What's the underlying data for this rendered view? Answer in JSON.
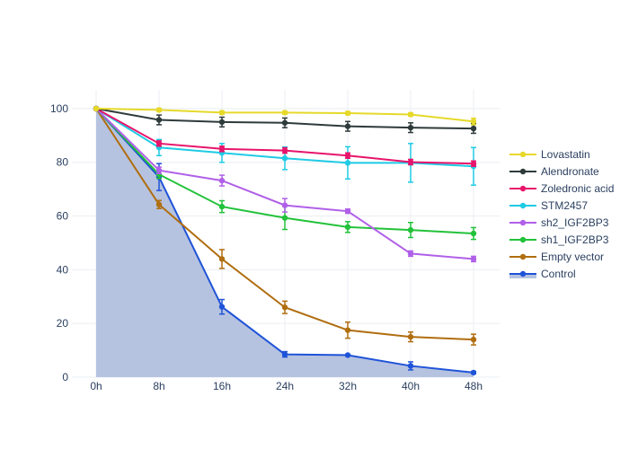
{
  "chart_data": {
    "type": "line",
    "title": "",
    "xlabel": "",
    "ylabel": "",
    "categories": [
      "0h",
      "8h",
      "16h",
      "24h",
      "32h",
      "40h",
      "48h"
    ],
    "ylim": [
      0,
      107
    ],
    "yticks": [
      0,
      20,
      40,
      60,
      80,
      100
    ],
    "grid": true,
    "legend_position": "right",
    "series": [
      {
        "name": "Lovastatin",
        "color": "#e6d92a",
        "values": [
          100,
          99.5,
          98.5,
          98.5,
          98.3,
          97.8,
          95.2
        ],
        "errors": [
          0,
          0.6,
          0.6,
          0.6,
          0.6,
          0.6,
          1.2
        ]
      },
      {
        "name": "Alendronate",
        "color": "#2f3b3b",
        "values": [
          100,
          95.8,
          95.0,
          94.7,
          93.4,
          92.9,
          92.6
        ],
        "errors": [
          0,
          1.8,
          1.8,
          1.8,
          1.8,
          1.8,
          1.8
        ]
      },
      {
        "name": "Zoledronic acid",
        "color": "#e8146b",
        "values": [
          100,
          87.0,
          85.0,
          84.4,
          82.5,
          80.1,
          79.5
        ],
        "errors": [
          0,
          1.0,
          1.0,
          1.0,
          1.0,
          1.0,
          1.0
        ]
      },
      {
        "name": "STM2457",
        "color": "#1fcbe5",
        "values": [
          100,
          85.5,
          83.5,
          81.5,
          79.8,
          79.8,
          78.5
        ],
        "errors": [
          0,
          3.0,
          3.5,
          4.2,
          6.0,
          7.2,
          7.0
        ]
      },
      {
        "name": "sh2_IGF2BP3",
        "color": "#b060e8",
        "values": [
          100,
          77.0,
          73.2,
          64.0,
          61.8,
          46.0,
          44.0
        ],
        "errors": [
          0,
          1.2,
          2.0,
          2.5,
          0.8,
          1.0,
          1.0
        ]
      },
      {
        "name": "sh1_IGF2BP3",
        "color": "#22c23a",
        "values": [
          100,
          75.5,
          63.5,
          59.3,
          55.9,
          54.8,
          53.5
        ],
        "errors": [
          0,
          1.5,
          2.2,
          4.3,
          2.0,
          2.8,
          2.2
        ]
      },
      {
        "name": "Empty vector",
        "color": "#b06e10",
        "values": [
          100,
          64.3,
          44.0,
          26.0,
          17.5,
          15.0,
          14.0
        ],
        "errors": [
          0,
          1.5,
          3.5,
          2.3,
          3.0,
          1.8,
          2.0
        ]
      },
      {
        "name": "Control",
        "color": "#1f53d8",
        "fill": "#b6c3e0",
        "values": [
          100,
          74.5,
          26.2,
          8.5,
          8.2,
          4.2,
          1.7
        ],
        "errors": [
          0,
          5.0,
          2.7,
          1.0,
          0.3,
          1.5,
          0.4
        ]
      }
    ]
  }
}
